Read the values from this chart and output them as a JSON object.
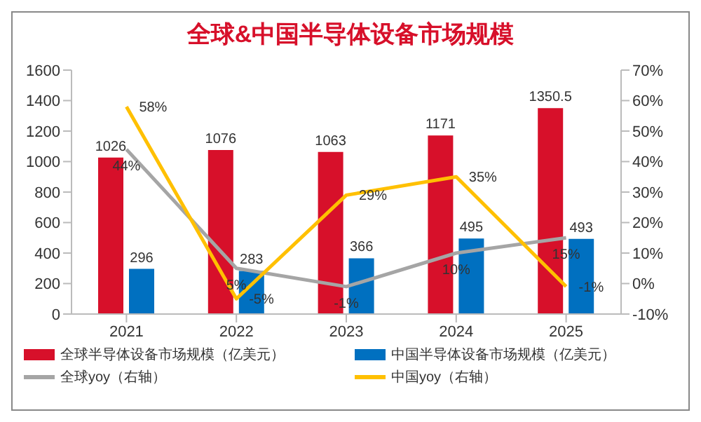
{
  "chart_data": {
    "type": "bar",
    "title": "全球&中国半导体设备市场规模",
    "categories": [
      "2021",
      "2022",
      "2023",
      "2024",
      "2025"
    ],
    "series": [
      {
        "name": "全球半导体设备市场规模（亿美元）",
        "color": "#d7102a",
        "values": [
          1026,
          1076,
          1063,
          1171,
          1350.5
        ],
        "value_labels": [
          "1026",
          "1076",
          "1063",
          "1171",
          "1350.5"
        ]
      },
      {
        "name": "中国半导体设备市场规模（亿美元）",
        "color": "#0070c0",
        "values": [
          296,
          283,
          366,
          495,
          493
        ],
        "value_labels": [
          "296",
          "283",
          "366",
          "495",
          "493"
        ]
      },
      {
        "name": "全球yoy（右轴）",
        "type": "line",
        "axis": "y2",
        "color": "#a5a5a5",
        "values": [
          44,
          5,
          -1,
          10,
          15
        ],
        "value_labels": [
          "44%",
          "5%",
          "-1%",
          "10%",
          "15%"
        ]
      },
      {
        "name": "中国yoy（右轴）",
        "type": "line",
        "axis": "y2",
        "color": "#ffc000",
        "values": [
          58,
          -5,
          29,
          35,
          -1
        ],
        "value_labels": [
          "58%",
          "-5%",
          "29%",
          "35%",
          "-1%"
        ]
      }
    ],
    "ylim": [
      0,
      1600
    ],
    "yticks": [
      0,
      200,
      400,
      600,
      800,
      1000,
      1200,
      1400,
      1600
    ],
    "y2lim": [
      -10,
      70
    ],
    "y2ticks": [
      {
        "value": -10,
        "label": "-10%"
      },
      {
        "value": 0,
        "label": "0%"
      },
      {
        "value": 10,
        "label": "10%"
      },
      {
        "value": 20,
        "label": "20%"
      },
      {
        "value": 30,
        "label": "30%"
      },
      {
        "value": 40,
        "label": "40%"
      },
      {
        "value": 50,
        "label": "50%"
      },
      {
        "value": 60,
        "label": "60%"
      },
      {
        "value": 70,
        "label": "70%"
      }
    ],
    "legend": "bottom",
    "marker": "none"
  }
}
